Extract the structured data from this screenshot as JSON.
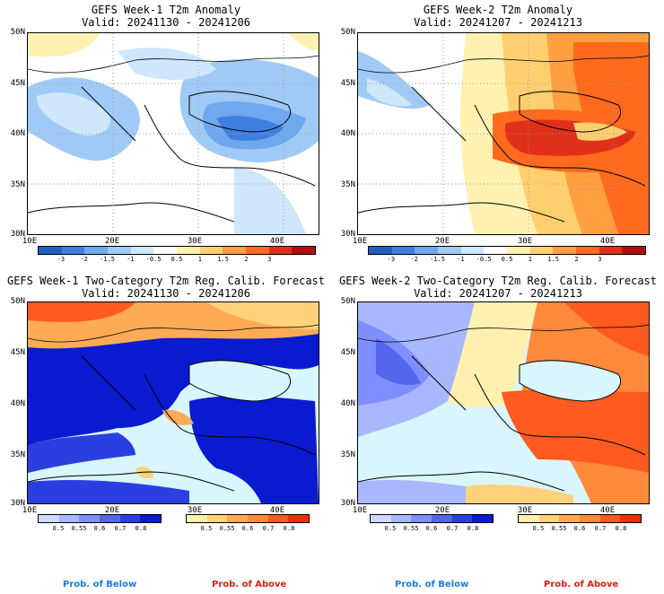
{
  "panels": [
    {
      "id": "w1-anom",
      "title": "GEFS Week-1 T2m Anomaly",
      "valid": "Valid: 20241130 - 20241206"
    },
    {
      "id": "w2-anom",
      "title": "GEFS Week-2 T2m Anomaly",
      "valid": "Valid: 20241207 - 20241213"
    },
    {
      "id": "w1-prob",
      "title": "GEFS Week-1 Two-Category T2m Reg. Calib. Forecast",
      "valid": "Valid: 20241130 - 20241206"
    },
    {
      "id": "w2-prob",
      "title": "GEFS Week-2 Two-Category T2m Reg. Calib. Forecast",
      "valid": "Valid: 20241207 - 20241213"
    }
  ],
  "lat_labels": [
    "50N",
    "45N",
    "40N",
    "35N",
    "30N"
  ],
  "lon_labels": [
    "10E",
    "20E",
    "30E",
    "40E"
  ],
  "anomaly_colorbar": {
    "ticks": [
      "-3",
      "-2",
      "-1.5",
      "-1",
      "-0.5",
      "0.5",
      "1",
      "1.5",
      "2",
      "3"
    ],
    "colors": [
      "#1f5fbf",
      "#3f7fdf",
      "#6fa8ef",
      "#9fcaf5",
      "#cfe6fb",
      "#ffffff",
      "#fff2b0",
      "#ffcf6f",
      "#ff9f3f",
      "#ff6a1f",
      "#e0301a",
      "#b0100f"
    ]
  },
  "prob_below_colorbar": {
    "ticks": [
      "0.5",
      "0.55",
      "0.6",
      "0.7",
      "0.8"
    ],
    "colors": [
      "#cfd8ff",
      "#a9b7ff",
      "#7f8fff",
      "#5566ee",
      "#2a3fe0",
      "#0a1ad0"
    ]
  },
  "prob_above_colorbar": {
    "ticks": [
      "0.5",
      "0.55",
      "0.6",
      "0.7",
      "0.8"
    ],
    "colors": [
      "#fff0b0",
      "#ffd27a",
      "#ffab55",
      "#ff8a3a",
      "#ff5a1f",
      "#ff2a0a"
    ]
  },
  "legends": {
    "below": "Prob. of Below",
    "above": "Prob. of Above"
  },
  "map_colors": {
    "sea_light": "#d8f6fb",
    "cold": "#3f7fdf",
    "warm": "#ff6a1f"
  }
}
